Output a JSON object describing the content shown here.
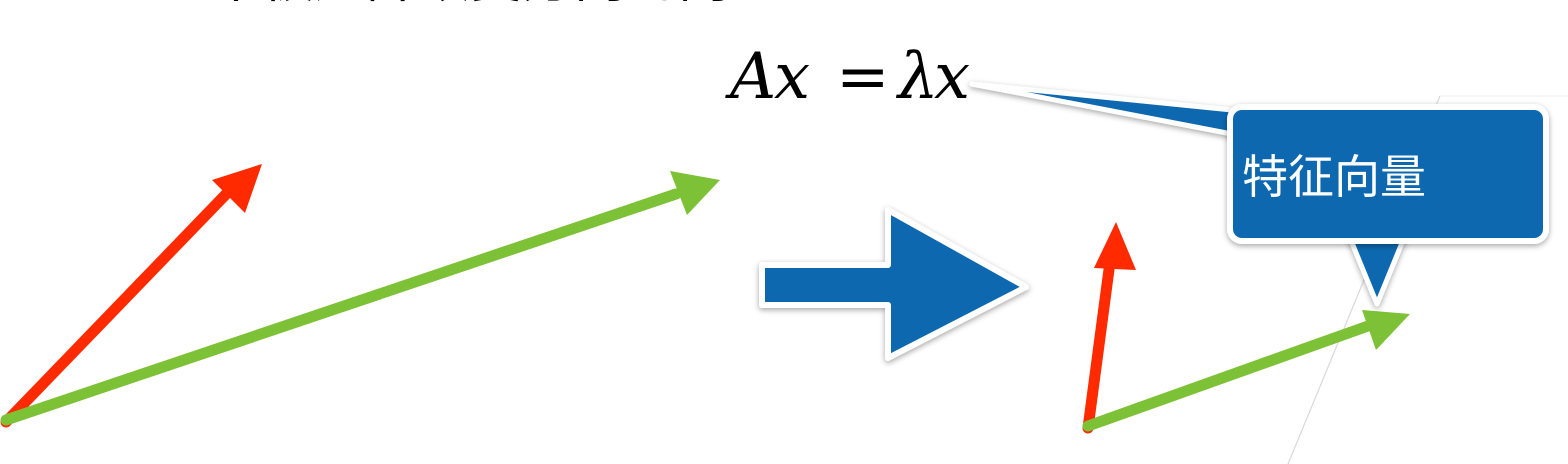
{
  "top_caption": "不被矩阵改变方向的向量",
  "equation": {
    "lhs_A": "A",
    "lhs_x": "x",
    "equals": "=",
    "rhs_lambda": "λ",
    "rhs_x": "x"
  },
  "callout": {
    "label": "特征向量"
  },
  "colors": {
    "red_vector": "#ff2a00",
    "green_vector": "#7dc136",
    "blue_shape": "#0e67b0",
    "callout_border": "#ffffff",
    "text_dark": "#000000",
    "text_light": "#ffffff"
  }
}
